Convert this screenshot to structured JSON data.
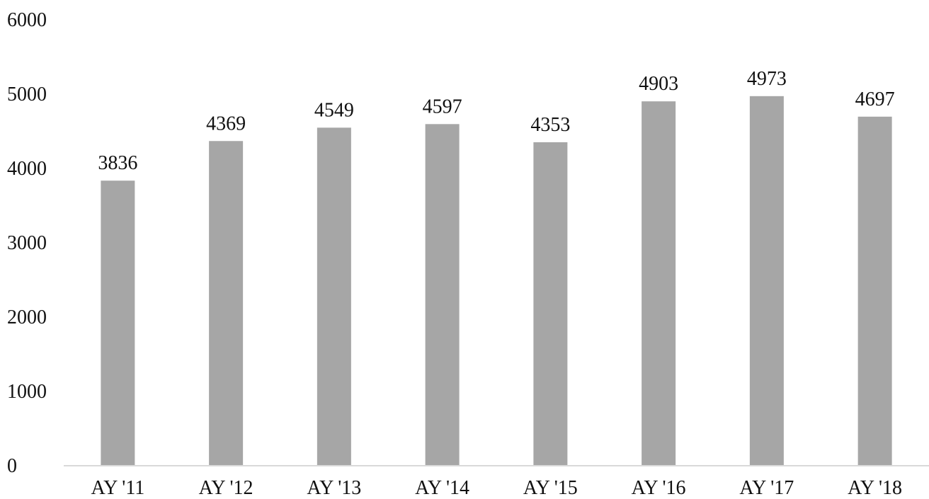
{
  "chart_data": {
    "type": "bar",
    "categories": [
      "AY '11",
      "AY '12",
      "AY '13",
      "AY '14",
      "AY '15",
      "AY '16",
      "AY '17",
      "AY '18"
    ],
    "values": [
      3836,
      4369,
      4549,
      4597,
      4353,
      4903,
      4973,
      4697
    ],
    "data_labels": [
      "3836",
      "4369",
      "4549",
      "4597",
      "4353",
      "4903",
      "4973",
      "4697"
    ],
    "y_ticks": [
      0,
      1000,
      2000,
      3000,
      4000,
      5000,
      6000
    ],
    "y_tick_labels": [
      "0",
      "1000",
      "2000",
      "3000",
      "4000",
      "5000",
      "6000"
    ],
    "ylim": [
      0,
      6000
    ],
    "title": "",
    "xlabel": "",
    "ylabel": "",
    "grid": false,
    "legend": "none",
    "bar_color": "#a6a6a6",
    "axis_color": "#d9d9d9"
  }
}
